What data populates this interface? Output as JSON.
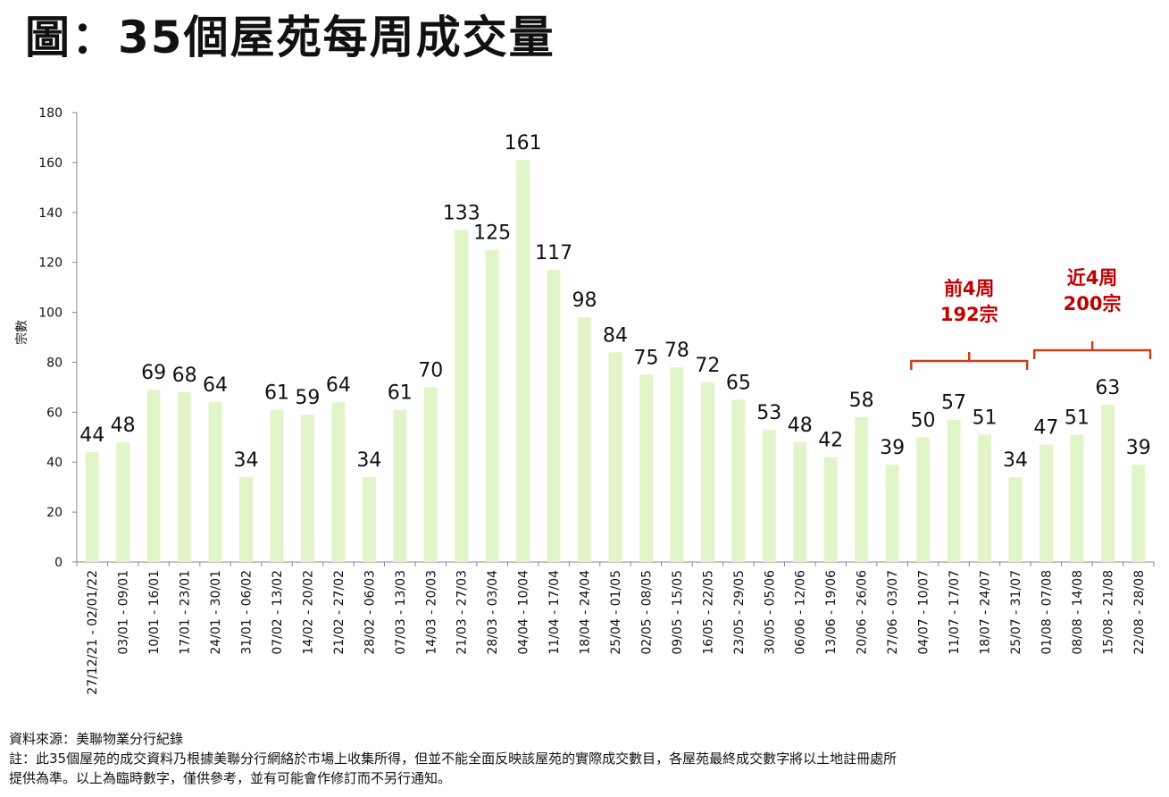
{
  "title": "圖：35個屋苑每周成交量",
  "chart_data": {
    "type": "bar",
    "title": "圖：35個屋苑每周成交量",
    "ylabel": "宗數",
    "xlabel": "",
    "ylim": [
      0,
      180
    ],
    "yticks": [
      0,
      20,
      40,
      60,
      80,
      100,
      120,
      140,
      160,
      180
    ],
    "grid": false,
    "bar_color": "#e2f5c8",
    "categories": [
      "27/12/21 - 02/01/22",
      "03/01 - 09/01",
      "10/01 - 16/01",
      "17/01 - 23/01",
      "24/01 - 30/01",
      "31/01 - 06/02",
      "07/02 - 13/02",
      "14/02 - 20/02",
      "21/02 - 27/02",
      "28/02 - 06/03",
      "07/03 - 13/03",
      "14/03 - 20/03",
      "21/03 - 27/03",
      "28/03 - 03/04",
      "04/04 - 10/04",
      "11/04 - 17/04",
      "18/04 - 24/04",
      "25/04 - 01/05",
      "02/05 - 08/05",
      "09/05 - 15/05",
      "16/05 - 22/05",
      "23/05 - 29/05",
      "30/05 - 05/06",
      "06/06 - 12/06",
      "13/06 - 19/06",
      "20/06 - 26/06",
      "27/06 - 03/07",
      "04/07 - 10/07",
      "11/07 - 17/07",
      "18/07 - 24/07",
      "25/07 - 31/07",
      "01/08 - 07/08",
      "08/08 - 14/08",
      "15/08 - 21/08",
      "22/08 - 28/08"
    ],
    "values": [
      44,
      48,
      69,
      68,
      64,
      34,
      61,
      59,
      64,
      34,
      61,
      70,
      133,
      125,
      161,
      117,
      98,
      84,
      75,
      78,
      72,
      65,
      53,
      48,
      42,
      58,
      39,
      50,
      57,
      51,
      34,
      47,
      51,
      63,
      39
    ],
    "annotations": [
      {
        "line1": "前4周",
        "line2": "192宗",
        "from_index": 27,
        "to_index": 30
      },
      {
        "line1": "近4周",
        "line2": "200宗",
        "from_index": 31,
        "to_index": 34
      }
    ],
    "annotation_color": "#c00000"
  },
  "footer": {
    "source": "資料來源：美聯物業分行紀錄",
    "note_line1": "註：此35個屋苑的成交資料乃根據美聯分行網絡於市場上收集所得，但並不能全面反映該屋苑的實際成交數目，各屋苑最終成交數字將以土地註冊處所",
    "note_line2": "提供為準。以上為臨時數字，僅供參考，並有可能會作修訂而不另行通知。"
  }
}
